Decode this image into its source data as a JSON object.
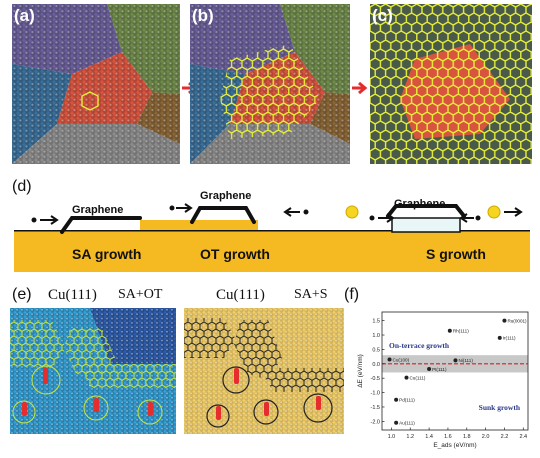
{
  "labels": {
    "a": "(a)",
    "b": "(b)",
    "c": "(c)",
    "d": "(d)",
    "e": "(e)",
    "f": "(f)"
  },
  "panel_d": {
    "graphene": "Graphene",
    "sa_growth": "SA growth",
    "ot_growth": "OT growth",
    "s_growth": "S growth",
    "colors": {
      "substrate": "#f5b921",
      "adatom_ball": "#f5d520",
      "island_fill": "#e8f6f8"
    }
  },
  "panel_e": {
    "left_title": "Cu(111)",
    "left_mode": "SA+OT",
    "right_title": "Cu(111)",
    "right_mode": "SA+S"
  },
  "colors": {
    "arrow_red": "#e52d2d",
    "hex_yellow": "#e6ef3a",
    "domain_purple": "#6a5f9a",
    "domain_olive": "#6f8a4a",
    "domain_red": "#d9543f",
    "domain_blue": "#3a6f9a",
    "domain_brown": "#8a6536",
    "domain_gray": "#8c8c8c",
    "cu_blue": "#35a3db",
    "sub_yellow": "#f0cf6e"
  },
  "chart_data": {
    "type": "scatter",
    "xlabel": "E_ads (eV/nm)",
    "ylabel": "ΔE (eV/nm)",
    "xlim": [
      0.9,
      2.45
    ],
    "ylim": [
      -2.3,
      1.8
    ],
    "xticks": [
      "1.0",
      "1.2",
      "1.4",
      "1.6",
      "1.8",
      "2.0",
      "2.2",
      "2.4"
    ],
    "yticks": [
      "-2.0",
      "-1.5",
      "-1.0",
      "-0.5",
      "0.0",
      "0.5",
      "1.0",
      "1.5"
    ],
    "reference_line_y": 0.0,
    "band": [
      -0.3,
      0.3
    ],
    "annotations": [
      "On-terrace growth",
      "Sunk growth"
    ],
    "points": [
      {
        "label": "Ru(0001)",
        "x": 2.2,
        "y": 1.5
      },
      {
        "label": "Rh(111)",
        "x": 1.62,
        "y": 1.15
      },
      {
        "label": "Ir(111)",
        "x": 2.15,
        "y": 0.9
      },
      {
        "label": "Cu(100)",
        "x": 0.98,
        "y": 0.15
      },
      {
        "label": "Ni(111)",
        "x": 1.68,
        "y": 0.12
      },
      {
        "label": "Pt(111)",
        "x": 1.4,
        "y": -0.18
      },
      {
        "label": "Cu(111)",
        "x": 1.16,
        "y": -0.48
      },
      {
        "label": "Pd(111)",
        "x": 1.05,
        "y": -1.25
      },
      {
        "label": "Au(111)",
        "x": 1.05,
        "y": -2.05
      }
    ]
  }
}
